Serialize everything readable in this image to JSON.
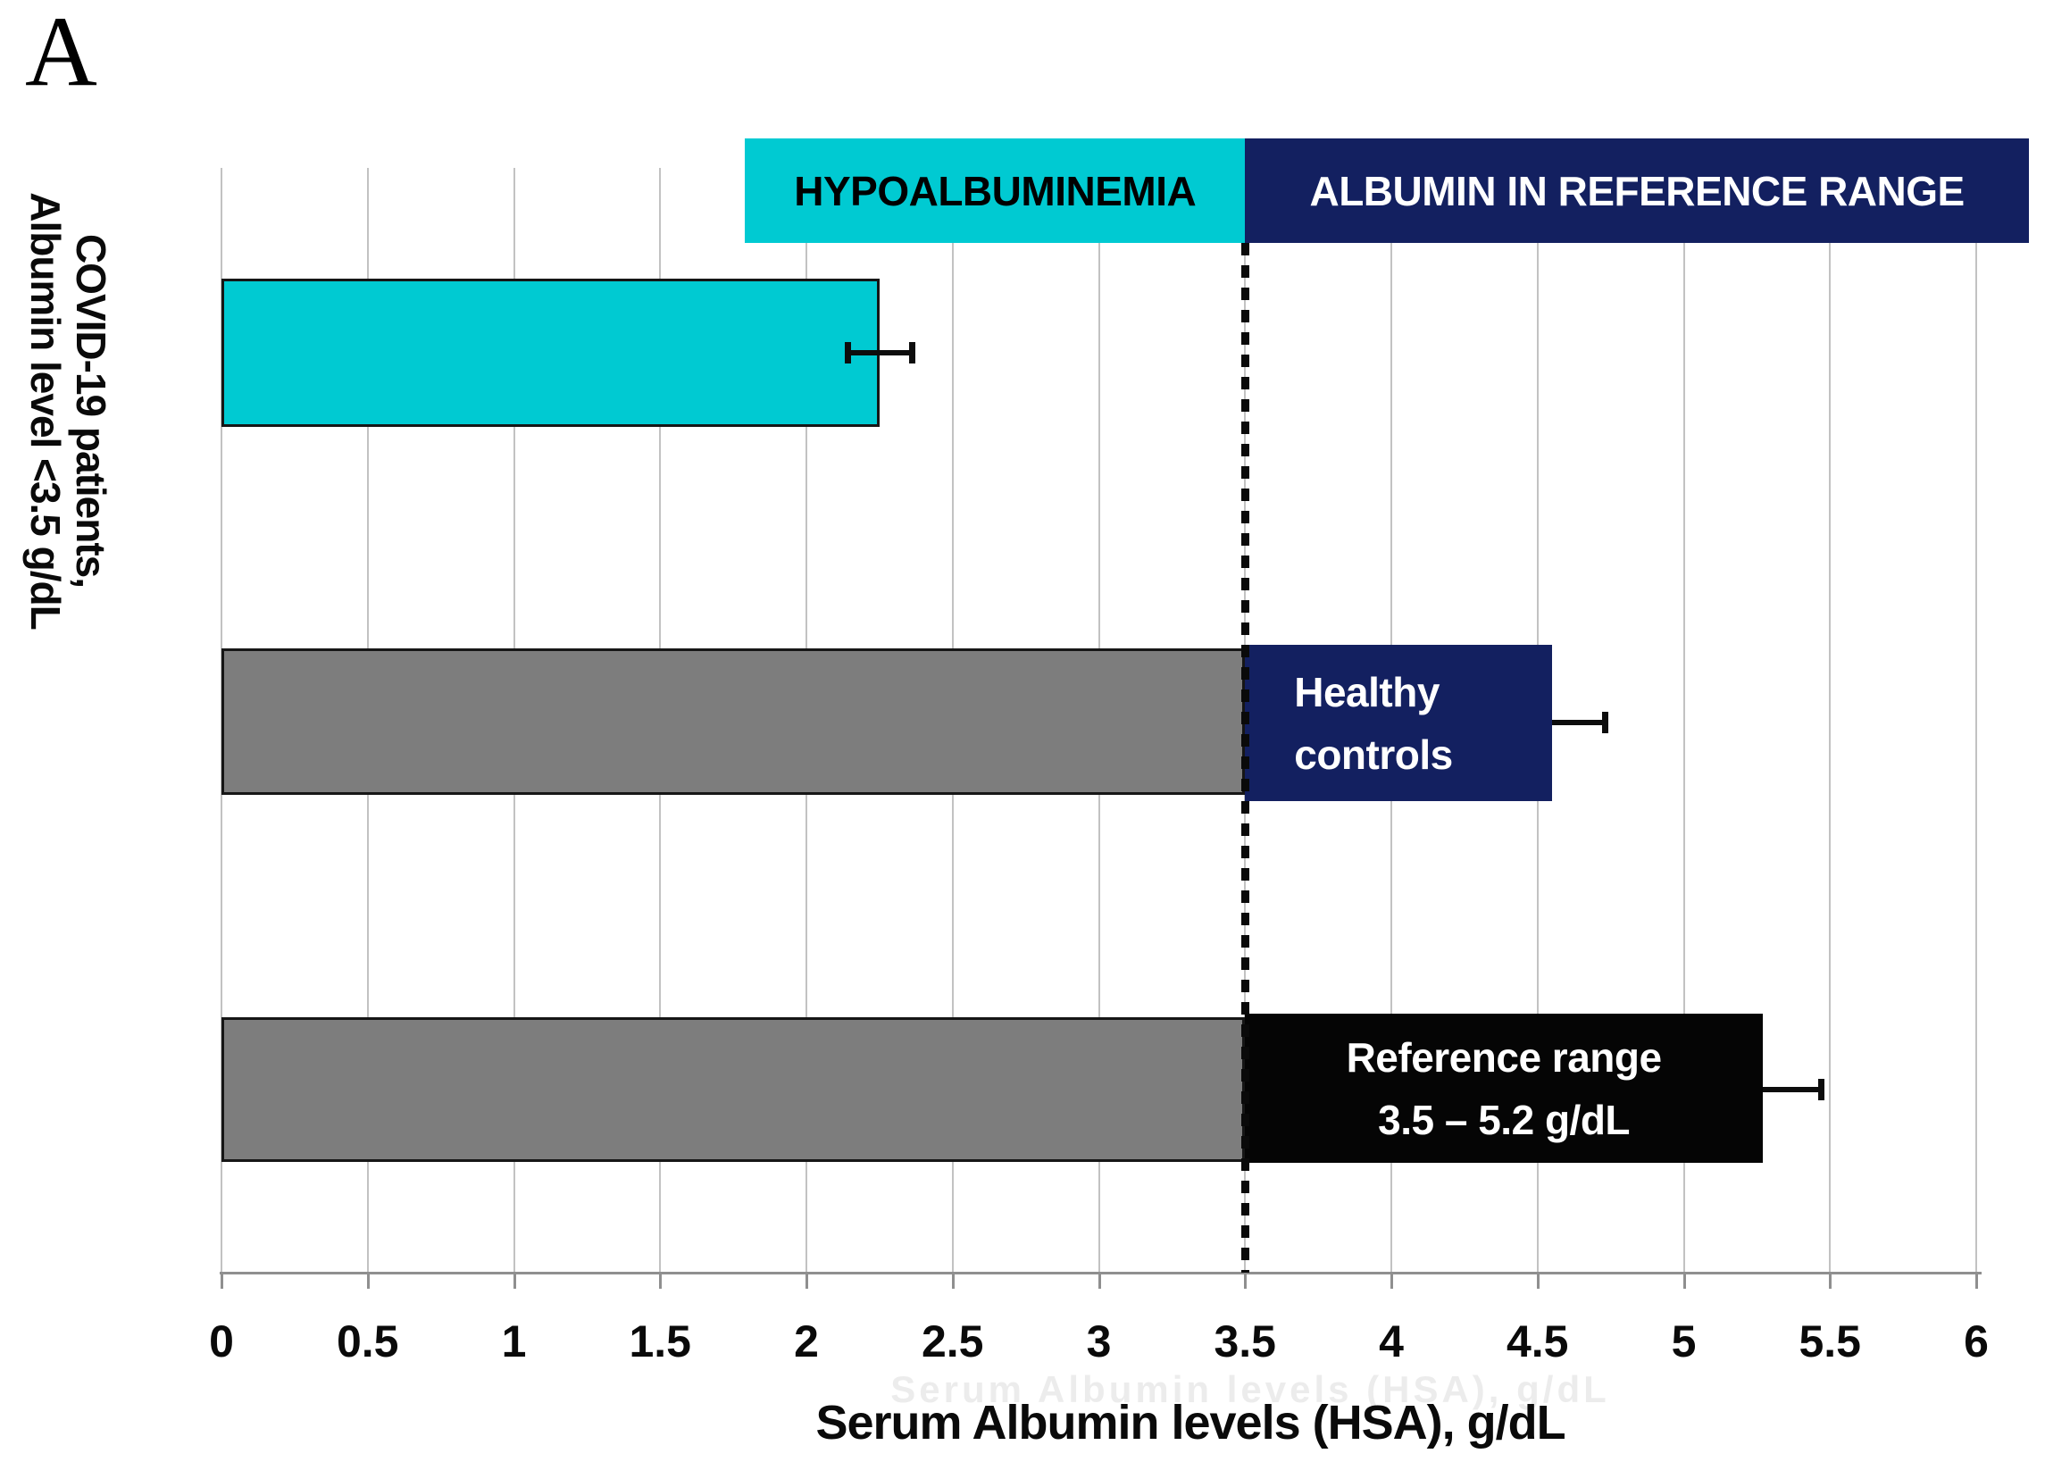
{
  "panel_label": "A",
  "y_axis_label": {
    "line1": "COVID-19 patients,",
    "line2": "Albumin level <3.5 g/dL"
  },
  "x_axis": {
    "title": "Serum Albumin levels (HSA), g/dL"
  },
  "colors": {
    "cyan": "#00cad2",
    "navy": "#132060",
    "gray": "#7d7d7d",
    "black_box": "#050505",
    "grid": "#c2c2c2",
    "axis": "#8f8f8f",
    "text": "#0a0a0a"
  },
  "chart_data": {
    "type": "bar",
    "orientation": "horizontal",
    "title": "",
    "xlabel": "Serum Albumin levels (HSA), g/dL",
    "ylabel": "COVID-19 patients, Albumin level <3.5 g/dL",
    "xlim": [
      0,
      6
    ],
    "x_ticks": [
      0,
      0.5,
      1,
      1.5,
      2,
      2.5,
      3,
      3.5,
      4,
      4.5,
      5,
      5.5,
      6
    ],
    "grid": true,
    "reference_line_x": 3.5,
    "zones": [
      {
        "label": "HYPOALBUMINEMIA",
        "from": 1.79,
        "to": 3.5,
        "color": "#00cad2",
        "text_color": "#000000"
      },
      {
        "label": "ALBUMIN IN REFERENCE RANGE",
        "from": 3.5,
        "to": 6.18,
        "color": "#132060",
        "text_color": "#ffffff"
      }
    ],
    "bars": [
      {
        "name": "COVID-19 patients",
        "value": 2.25,
        "error": 0.11,
        "error_caps": "both",
        "segments": [
          {
            "from": 0,
            "to": 2.25,
            "color": "#00cad2",
            "bordered": true,
            "raised": false
          }
        ],
        "box_label_lines": [],
        "box_text_align": "center"
      },
      {
        "name": "Healthy controls",
        "value": 4.55,
        "error": 0.18,
        "error_caps": "right",
        "segments": [
          {
            "from": 0,
            "to": 3.5,
            "color": "#7d7d7d",
            "bordered": true,
            "raised": false
          },
          {
            "from": 3.5,
            "to": 4.55,
            "color": "#132060",
            "bordered": false,
            "raised": true
          }
        ],
        "box_label_lines": [
          "Healthy",
          "controls"
        ],
        "box_text_align": "left"
      },
      {
        "name": "Reference range 3.5 – 5.2 g/dL",
        "value": 5.27,
        "error": 0.2,
        "error_caps": "right",
        "segments": [
          {
            "from": 0,
            "to": 3.5,
            "color": "#7d7d7d",
            "bordered": true,
            "raised": false
          },
          {
            "from": 3.5,
            "to": 5.27,
            "color": "#050505",
            "bordered": false,
            "raised": true
          }
        ],
        "box_label_lines": [
          "Reference range",
          "3.5 – 5.2 g/dL"
        ],
        "box_text_align": "center"
      }
    ]
  }
}
